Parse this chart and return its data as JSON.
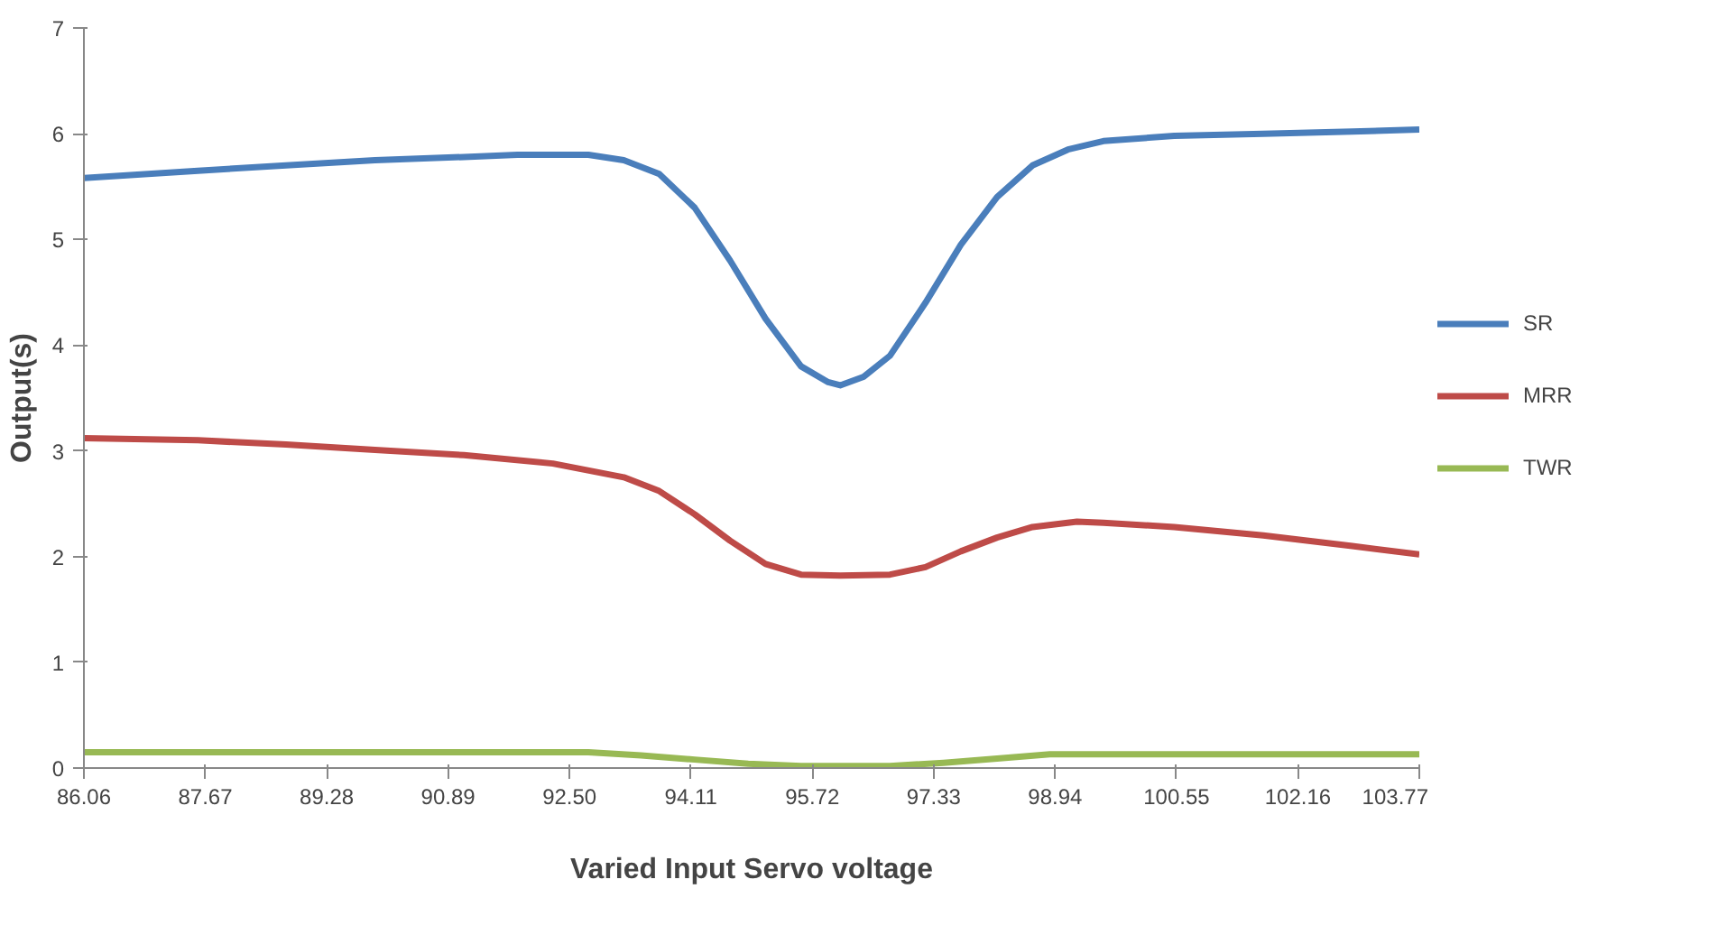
{
  "chart_data": {
    "type": "line",
    "xlabel": "Varied Input Servo voltage",
    "ylabel": "Output(s)",
    "xlim": [
      86.06,
      103.77
    ],
    "xticks": [
      86.06,
      87.67,
      89.28,
      90.89,
      {
        "value": 92.5,
        "label": "92.50"
      },
      94.11,
      95.72,
      97.33,
      98.94,
      100.55,
      102.16,
      103.77
    ],
    "ylim": [
      0,
      7
    ],
    "yticks": [
      0,
      1,
      2,
      3,
      4,
      5,
      6,
      7
    ],
    "grid": false,
    "legend": "right",
    "marker": "none",
    "line_style": "solid",
    "series": [
      {
        "name": "SR",
        "color": "#4a7ebb",
        "x": [
          86.06,
          87.57,
          88.74,
          89.92,
          91.1,
          91.81,
          92.75,
          93.22,
          93.69,
          94.16,
          94.63,
          95.1,
          95.57,
          95.93,
          96.09,
          96.4,
          96.75,
          97.22,
          97.69,
          98.17,
          98.64,
          99.11,
          99.58,
          100.52,
          101.7,
          102.88,
          103.77
        ],
        "values": [
          5.58,
          5.65,
          5.7,
          5.75,
          5.78,
          5.8,
          5.8,
          5.75,
          5.62,
          5.3,
          4.8,
          4.25,
          3.8,
          3.65,
          3.62,
          3.7,
          3.9,
          4.4,
          4.95,
          5.4,
          5.7,
          5.85,
          5.93,
          5.98,
          6.0,
          6.02,
          6.04
        ]
      },
      {
        "name": "MRR",
        "color": "#be4b48",
        "x": [
          86.06,
          87.57,
          88.74,
          89.92,
          91.1,
          92.28,
          93.22,
          93.69,
          94.16,
          94.63,
          95.1,
          95.57,
          96.09,
          96.75,
          97.22,
          97.69,
          98.17,
          98.64,
          99.23,
          99.58,
          100.52,
          101.7,
          102.88,
          103.77
        ],
        "values": [
          3.12,
          3.1,
          3.06,
          3.01,
          2.96,
          2.88,
          2.75,
          2.62,
          2.4,
          2.15,
          1.93,
          1.83,
          1.82,
          1.83,
          1.9,
          2.05,
          2.18,
          2.28,
          2.33,
          2.32,
          2.28,
          2.2,
          2.1,
          2.02
        ]
      },
      {
        "name": "TWR",
        "color": "#98b954",
        "x": [
          86.06,
          92.75,
          93.45,
          94.16,
          94.87,
          95.57,
          96.75,
          97.46,
          98.17,
          98.87,
          100.52,
          103.77
        ],
        "values": [
          0.15,
          0.15,
          0.12,
          0.08,
          0.04,
          0.02,
          0.02,
          0.05,
          0.09,
          0.13,
          0.13,
          0.13
        ]
      }
    ]
  }
}
